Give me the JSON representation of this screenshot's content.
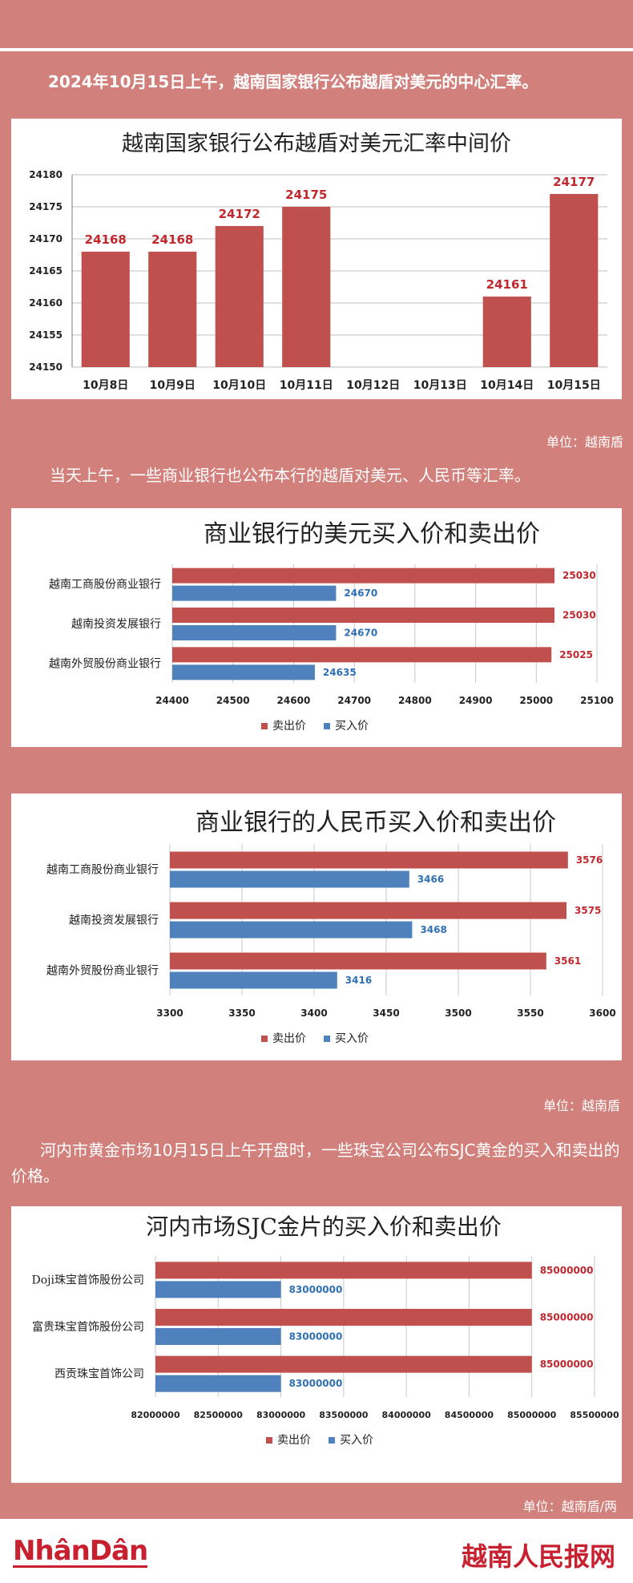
{
  "intro1": "2024年10月15日上午，越南国家银行公布越盾对美元的中心汇率。",
  "intro2": "当天上午，一些商业银行也公布本行的越盾对美元、人民币等汇率。",
  "intro3": "河内市黄金市场10月15日上午开盘时，一些珠宝公司公布SJC黄金的买入和卖出的价格。",
  "unit1": "单位：越南盾",
  "unit2": "单位：越南盾",
  "unit3": "单位：越南盾/两",
  "footer": {
    "left_logo": "NhânDân",
    "right_logo": "越南人民报网"
  },
  "colors": {
    "sell": "#c0504d",
    "buy": "#4f81bd",
    "background": "#d2807c"
  },
  "chart_data": [
    {
      "type": "bar",
      "title": "越南国家银行公布越盾对美元汇率中间价",
      "categories": [
        "10月8日",
        "10月9日",
        "10月10日",
        "10月11日",
        "10月12日",
        "10月13日",
        "10月14日",
        "10月15日"
      ],
      "values": [
        24168,
        24168,
        24172,
        24175,
        null,
        null,
        24161,
        24177
      ],
      "ylim": [
        24150,
        24180
      ],
      "yticks": [
        24150,
        24155,
        24160,
        24165,
        24170,
        24175,
        24180
      ],
      "grid": true
    },
    {
      "type": "bar",
      "orientation": "horizontal",
      "title": "商业银行的美元买入价和卖出价",
      "categories": [
        "越南工商股份商业银行",
        "越南投资发展银行",
        "越南外贸股份商业银行"
      ],
      "series": [
        {
          "name": "卖出价",
          "values": [
            25030,
            25030,
            25025
          ]
        },
        {
          "name": "买入价",
          "values": [
            24670,
            24670,
            24635
          ]
        }
      ],
      "xlim": [
        24400,
        25100
      ],
      "xticks": [
        24400,
        24500,
        24600,
        24700,
        24800,
        24900,
        25000,
        25100
      ],
      "legend": "bottom",
      "grid": true
    },
    {
      "type": "bar",
      "orientation": "horizontal",
      "title": "商业银行的人民币买入价和卖出价",
      "categories": [
        "越南工商股份商业银行",
        "越南投资发展银行",
        "越南外贸股份商业银行"
      ],
      "series": [
        {
          "name": "卖出价",
          "values": [
            3576,
            3575,
            3561
          ]
        },
        {
          "name": "买入价",
          "values": [
            3466,
            3468,
            3416
          ]
        }
      ],
      "xlim": [
        3300,
        3600
      ],
      "xticks": [
        3300,
        3350,
        3400,
        3450,
        3500,
        3550,
        3600
      ],
      "legend": "bottom",
      "grid": true
    },
    {
      "type": "bar",
      "orientation": "horizontal",
      "title": "河内市场SJC金片的买入价和卖出价",
      "categories": [
        "Doji珠宝首饰股份公司",
        "富贵珠宝首饰股份公司",
        "西贡珠宝首饰公司"
      ],
      "series": [
        {
          "name": "卖出价",
          "values": [
            85000000,
            85000000,
            85000000
          ]
        },
        {
          "name": "买入价",
          "values": [
            83000000,
            83000000,
            83000000
          ]
        }
      ],
      "xlim": [
        82000000,
        85500000
      ],
      "xticks": [
        82000000,
        82500000,
        83000000,
        83500000,
        84000000,
        84500000,
        85000000,
        85500000
      ],
      "legend": "bottom",
      "grid": true
    }
  ]
}
